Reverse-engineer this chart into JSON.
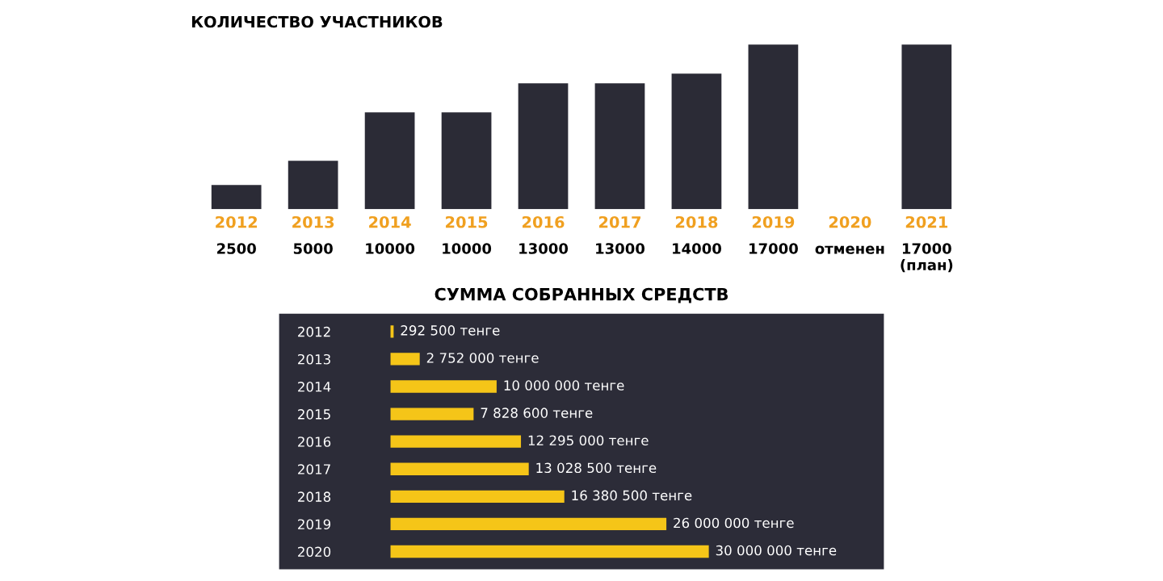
{
  "chart_data": [
    {
      "type": "bar",
      "title": "КОЛИЧЕСТВО УЧАСТНИКОВ",
      "categories": [
        "2012",
        "2013",
        "2014",
        "2015",
        "2016",
        "2017",
        "2018",
        "2019",
        "2020",
        "2021"
      ],
      "values": [
        2500,
        5000,
        10000,
        10000,
        13000,
        13000,
        14000,
        17000,
        null,
        17000
      ],
      "value_labels": [
        "2500",
        "5000",
        "10000",
        "10000",
        "13000",
        "13000",
        "14000",
        "17000",
        "отменен",
        "17000\n(план)"
      ],
      "color": "#2b2b36",
      "tick_labels": "x"
    },
    {
      "type": "bar",
      "orientation": "horizontal",
      "title": "СУММА СОБРАННЫХ СРЕДСТВ",
      "categories": [
        "2012",
        "2013",
        "2014",
        "2015",
        "2016",
        "2017",
        "2018",
        "2019",
        "2020"
      ],
      "values": [
        292500,
        2752000,
        10000000,
        7828600,
        12295000,
        13028500,
        16380500,
        26000000,
        30000000
      ],
      "value_labels": [
        "292 500 тенге",
        "2 752 000 тенге",
        "10 000 000 тенге",
        "7 828 600 тенге",
        "12 295 000 тенге",
        "13 028 500 тенге",
        "16 380 500 тенге",
        "26 000 000 тенге",
        "30 000 000 тенге"
      ],
      "color": "#f5c518",
      "tick_labels": "y"
    }
  ]
}
